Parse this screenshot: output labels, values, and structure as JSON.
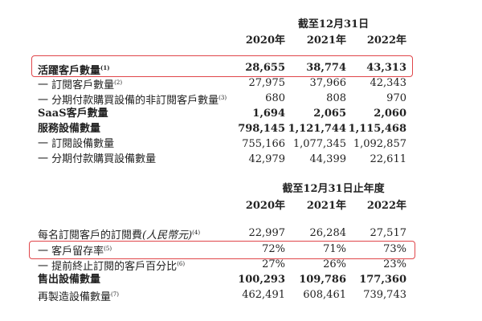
{
  "section1": {
    "header": "截至12月31日",
    "years": [
      "2020年",
      "2021年",
      "2022年"
    ],
    "rows": [
      {
        "label": "活躍客戶數量",
        "note": "(1)",
        "values": [
          "28,655",
          "38,774",
          "43,313"
        ],
        "bold": true,
        "highlighted": true
      },
      {
        "label": "一 訂閱客戶數量",
        "note": "(2)",
        "values": [
          "27,975",
          "37,966",
          "42,343"
        ],
        "bold": false
      },
      {
        "label": "一 分期付款購買設備的非訂閱客戶數量",
        "note": "(3)",
        "values": [
          "680",
          "808",
          "970"
        ],
        "bold": false
      },
      {
        "label": "SaaS客戶數量",
        "note": "",
        "values": [
          "1,694",
          "2,065",
          "2,060"
        ],
        "bold": true
      },
      {
        "label": "服務設備數量",
        "note": "",
        "values": [
          "798,145",
          "1,121,744",
          "1,115,468"
        ],
        "bold": true
      },
      {
        "label": "一 訂閱設備數量",
        "note": "",
        "values": [
          "755,166",
          "1,077,345",
          "1,092,857"
        ],
        "bold": false
      },
      {
        "label": "一 分期付款購買設備數量",
        "note": "",
        "values": [
          "42,979",
          "44,399",
          "22,611"
        ],
        "bold": false
      }
    ]
  },
  "section2": {
    "header": "截至12月31日止年度",
    "years": [
      "2020年",
      "2021年",
      "2022年"
    ],
    "rows": [
      {
        "label": "每名訂閱客戶的訂閱費",
        "label_italic": "(人民幣元)",
        "note": "(4)",
        "values": [
          "22,997",
          "26,284",
          "27,517"
        ],
        "bold": false
      },
      {
        "label": "一 客戶留存率",
        "note": "(5)",
        "values": [
          "72%",
          "71%",
          "73%"
        ],
        "bold": false,
        "highlighted": true
      },
      {
        "label": "一 提前終止訂閱的客戶百分比",
        "note": "(6)",
        "values": [
          "27%",
          "26%",
          "23%"
        ],
        "bold": false
      },
      {
        "label": "售出設備數量",
        "note": "",
        "values": [
          "100,293",
          "109,786",
          "177,360"
        ],
        "bold": true
      },
      {
        "label": "再製造設備數量",
        "note": "(7)",
        "values": [
          "462,491",
          "608,461",
          "739,743"
        ],
        "bold": false
      }
    ]
  },
  "highlight_color": "#e0464a"
}
